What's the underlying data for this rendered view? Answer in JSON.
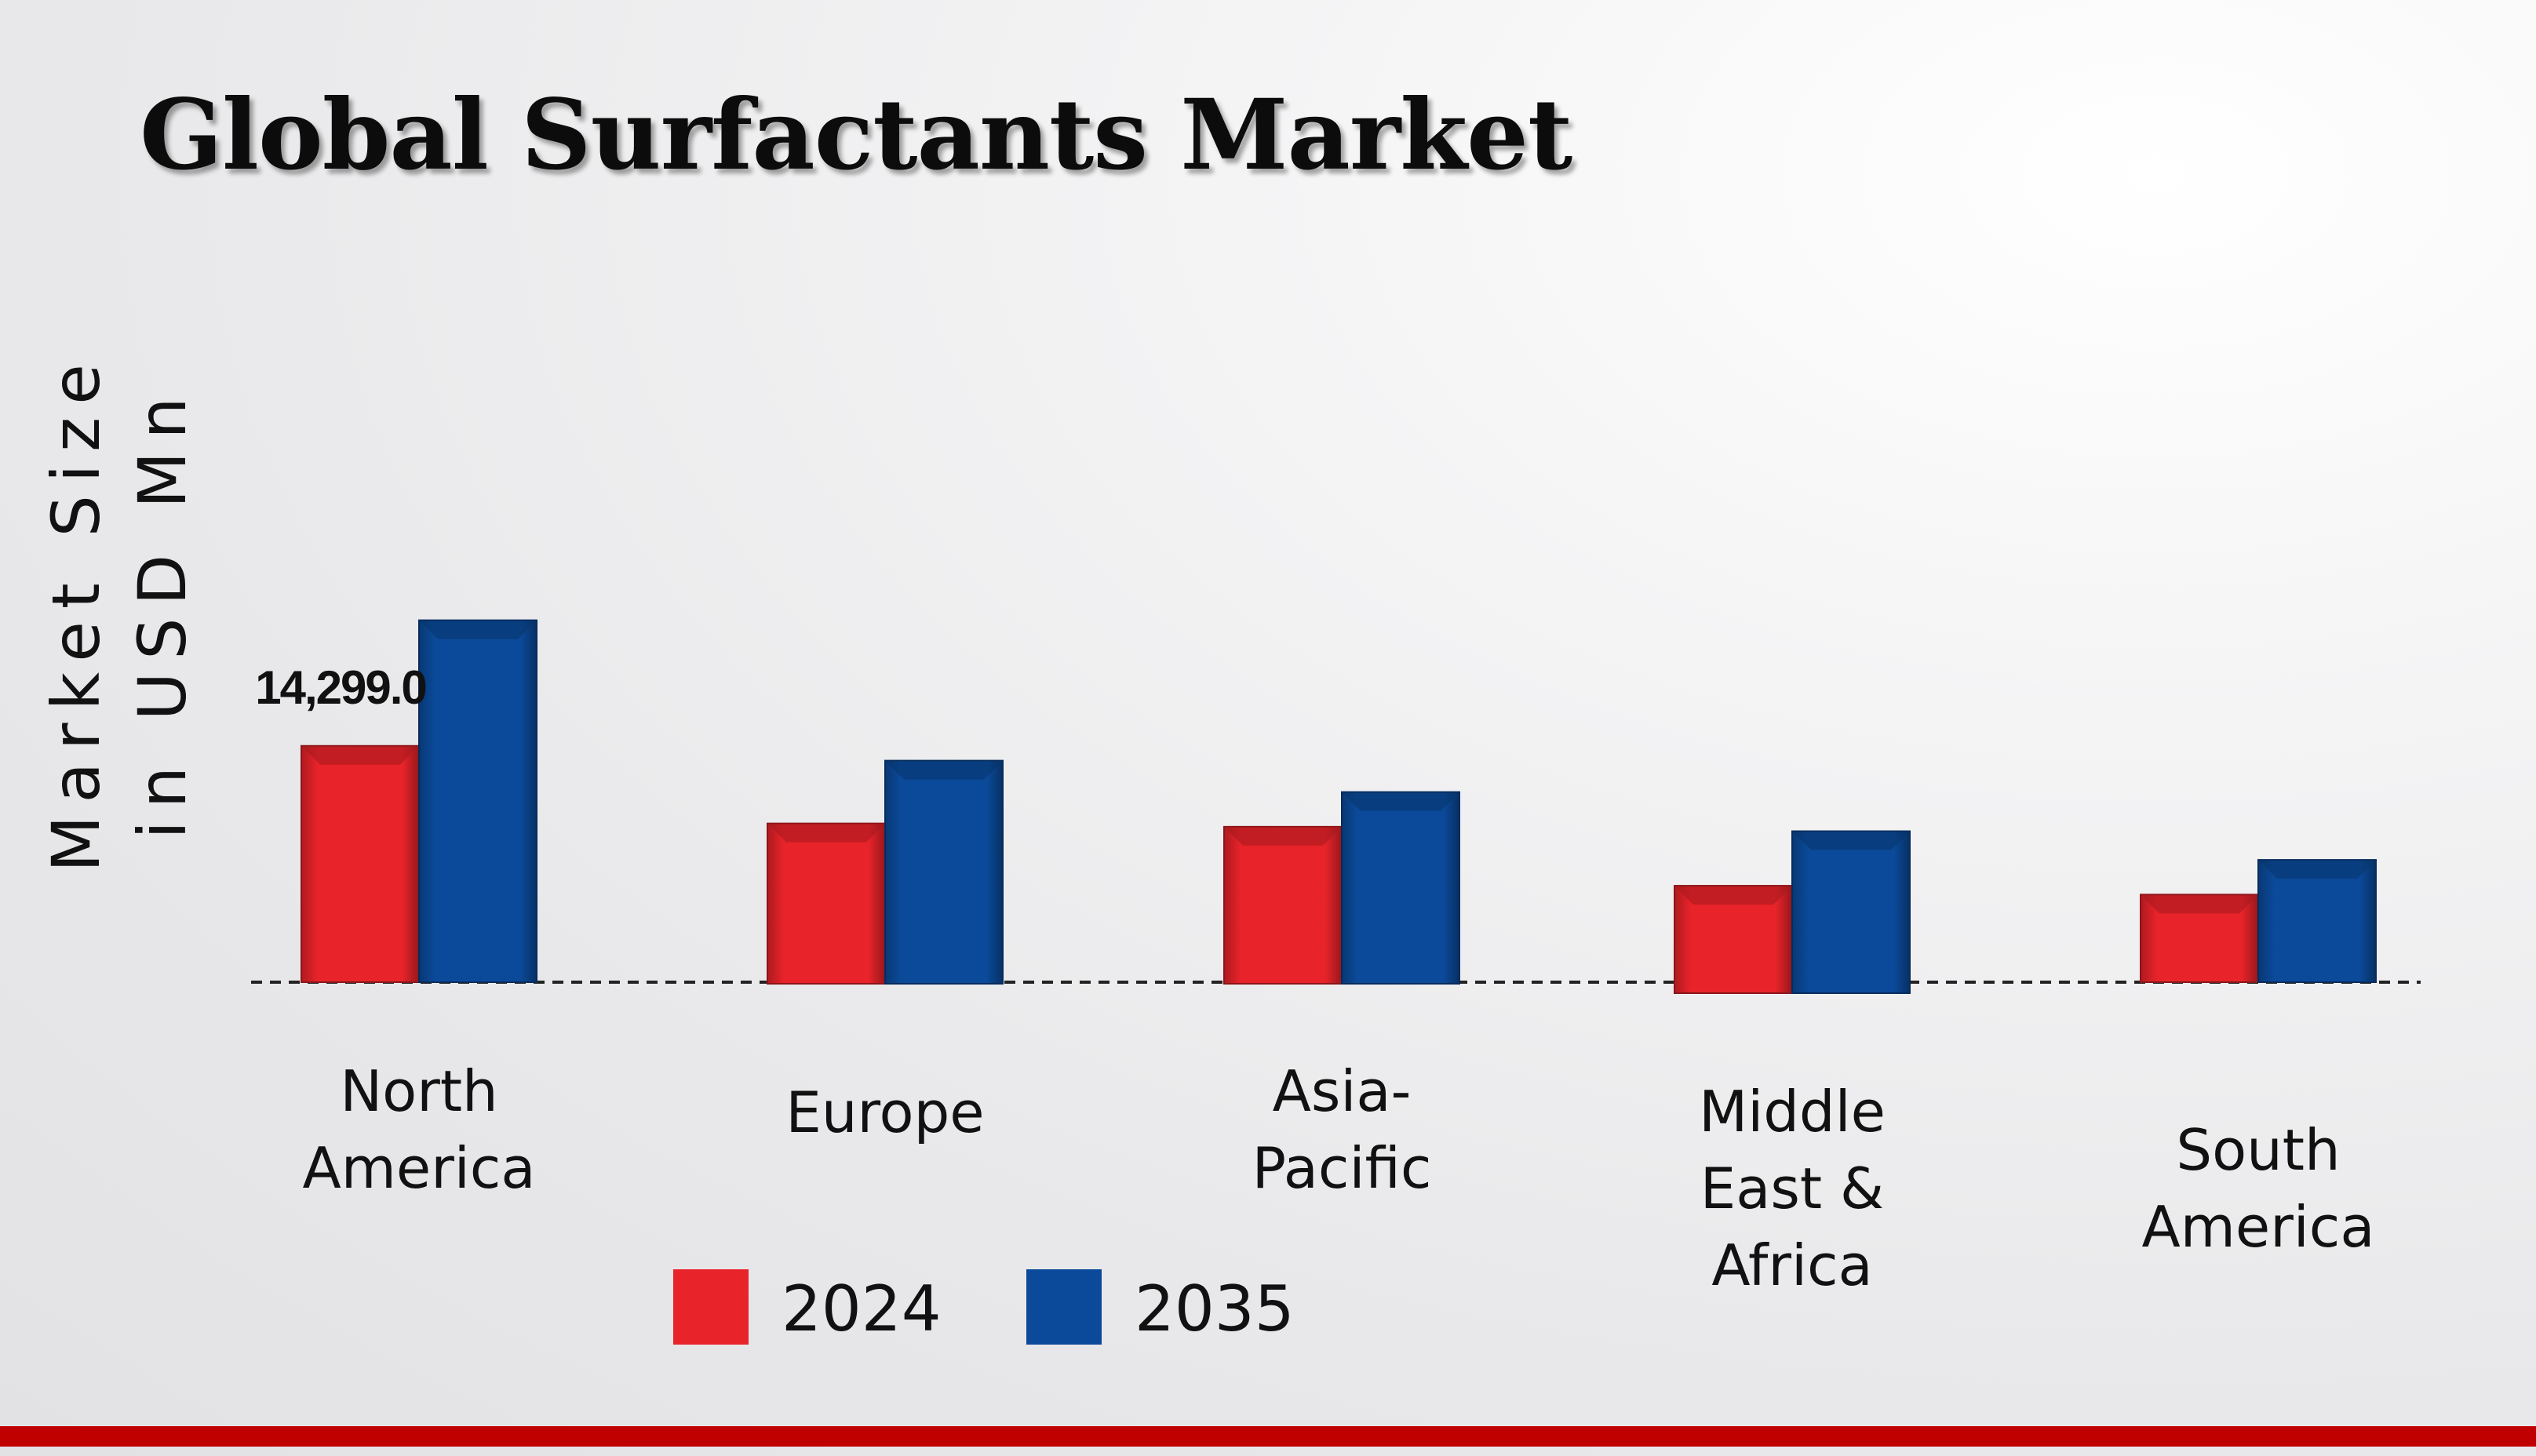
{
  "chart_data": {
    "type": "bar",
    "title": "Global Surfactants Market",
    "ylabel": "Market Size in USD Mn",
    "ylabel_lines": [
      "Market Size",
      "in USD Mn"
    ],
    "xlabel": "",
    "categories": [
      [
        "North",
        "America"
      ],
      [
        "Europe"
      ],
      [
        "Asia-",
        "Pacific"
      ],
      [
        "Middle",
        "East &",
        "Africa"
      ],
      [
        "South",
        "America"
      ]
    ],
    "series": [
      {
        "name": "2024",
        "color": "#e8232a",
        "values": [
          14299.0,
          9700,
          9500,
          6500,
          5300
        ]
      },
      {
        "name": "2035",
        "color": "#0b4a9a",
        "values": [
          21900,
          13500,
          11600,
          9800,
          7400
        ]
      }
    ],
    "data_labels": [
      {
        "series": 0,
        "category": 0,
        "text": "14,299.0"
      }
    ],
    "ylim": [
      0,
      30000
    ],
    "grid": false,
    "legend_position": "bottom-left"
  }
}
